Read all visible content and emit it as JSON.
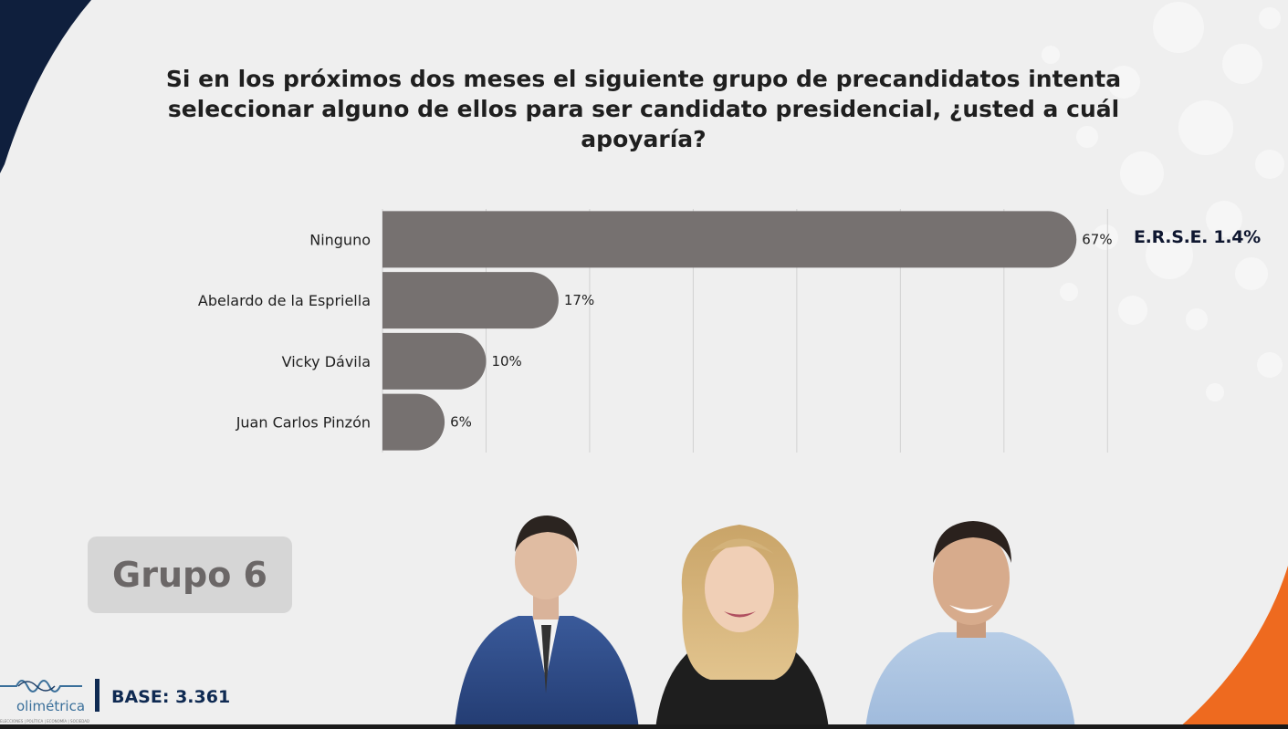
{
  "title": "Si en los próximos dos meses el siguiente grupo de precandidatos intenta seleccionar alguno de ellos para ser candidato presidencial, ¿usted a cuál apoyaría?",
  "erse_label": "E.R.S.E. 1.4%",
  "group_label": "Grupo 6",
  "base_label": "BASE: 3.361",
  "logo": {
    "text": "olimétrica",
    "subtitle": "ELECCIONES | POLÍTICA | ECONOMÍA | SOCIEDAD"
  },
  "colors": {
    "bar": "#767170",
    "navy": "#0f1f3d",
    "orange": "#ee6a1f",
    "background": "#efefef"
  },
  "chart_data": {
    "type": "bar",
    "orientation": "horizontal",
    "categories": [
      "Ninguno",
      "Abelardo de la Espriella",
      "Vicky Dávila",
      "Juan Carlos Pinzón"
    ],
    "values": [
      67,
      17,
      10,
      6
    ],
    "value_labels": [
      "67%",
      "17%",
      "10%",
      "6%"
    ],
    "xlim": [
      0,
      72
    ],
    "grid": true,
    "legend": "none"
  }
}
